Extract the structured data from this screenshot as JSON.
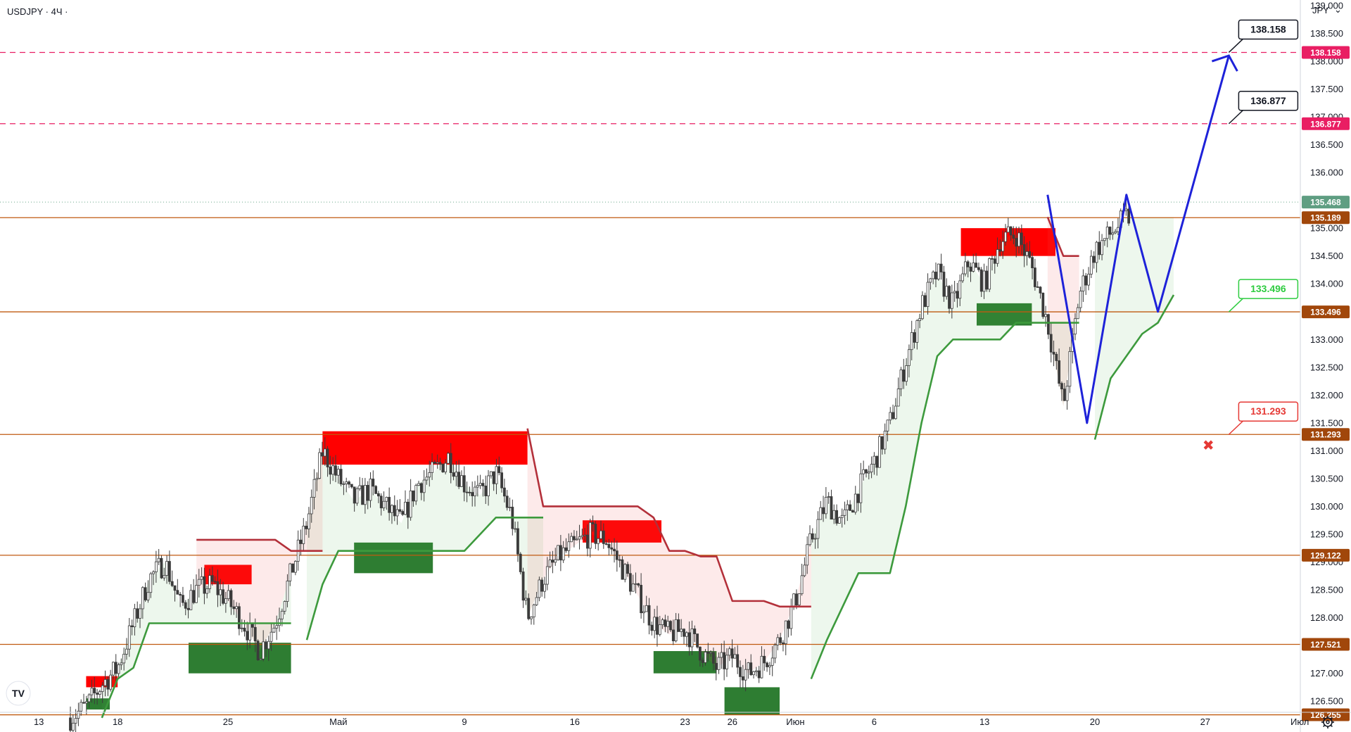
{
  "chart_data": {
    "type": "candlestick",
    "symbol_title": "USDJPY · 4Ч ·",
    "currency": "JPY",
    "currency_caret": "⌄",
    "ylim": [
      126.3,
      139.1
    ],
    "y_ticks": [
      "126.500",
      "127.000",
      "127.500",
      "128.000",
      "128.500",
      "129.000",
      "129.500",
      "130.000",
      "130.500",
      "131.000",
      "131.500",
      "132.000",
      "132.500",
      "133.000",
      "133.500",
      "134.000",
      "134.500",
      "135.000",
      "135.500",
      "136.000",
      "136.500",
      "137.000",
      "137.500",
      "138.000",
      "138.500",
      "139.000"
    ],
    "x_ticks": [
      {
        "label": "13",
        "t": -2
      },
      {
        "label": "18",
        "t": 3
      },
      {
        "label": "25",
        "t": 10
      },
      {
        "label": "Май",
        "t": 17
      },
      {
        "label": "9",
        "t": 25
      },
      {
        "label": "16",
        "t": 32
      },
      {
        "label": "23",
        "t": 39
      },
      {
        "label": "26",
        "t": 42
      },
      {
        "label": "Июн",
        "t": 46
      },
      {
        "label": "6",
        "t": 51
      },
      {
        "label": "13",
        "t": 58
      },
      {
        "label": "20",
        "t": 65
      },
      {
        "label": "27",
        "t": 72
      },
      {
        "label": "Июл",
        "t": 78
      }
    ],
    "candle_path": [
      [
        0,
        126.2
      ],
      [
        1,
        126.4
      ],
      [
        2,
        126.8
      ],
      [
        3,
        127.1
      ],
      [
        4,
        127.9
      ],
      [
        5,
        128.7
      ],
      [
        6,
        129.0
      ],
      [
        7,
        128.2
      ],
      [
        8,
        128.5
      ],
      [
        9,
        128.6
      ],
      [
        10,
        128.3
      ],
      [
        11,
        127.9
      ],
      [
        12,
        127.4
      ],
      [
        13,
        127.9
      ],
      [
        14,
        128.8
      ],
      [
        15,
        129.7
      ],
      [
        16,
        131.0
      ],
      [
        17,
        130.5
      ],
      [
        18,
        130.1
      ],
      [
        19,
        130.3
      ],
      [
        20,
        130.0
      ],
      [
        21,
        129.7
      ],
      [
        22,
        130.4
      ],
      [
        23,
        130.6
      ],
      [
        24,
        130.9
      ],
      [
        25,
        130.4
      ],
      [
        26,
        130.2
      ],
      [
        27,
        130.6
      ],
      [
        28,
        129.8
      ],
      [
        29,
        128.0
      ],
      [
        30,
        128.7
      ],
      [
        31,
        129.1
      ],
      [
        32,
        129.3
      ],
      [
        33,
        129.5
      ],
      [
        34,
        129.4
      ],
      [
        35,
        128.9
      ],
      [
        36,
        128.4
      ],
      [
        37,
        127.9
      ],
      [
        38,
        127.7
      ],
      [
        39,
        127.8
      ],
      [
        40,
        127.4
      ],
      [
        41,
        127.1
      ],
      [
        42,
        127.3
      ],
      [
        43,
        127.0
      ],
      [
        44,
        127.2
      ],
      [
        45,
        127.6
      ],
      [
        46,
        128.3
      ],
      [
        47,
        129.4
      ],
      [
        48,
        130.1
      ],
      [
        49,
        129.7
      ],
      [
        50,
        130.3
      ],
      [
        51,
        130.8
      ],
      [
        52,
        131.5
      ],
      [
        53,
        132.6
      ],
      [
        54,
        133.6
      ],
      [
        55,
        134.2
      ],
      [
        56,
        133.6
      ],
      [
        57,
        134.4
      ],
      [
        58,
        134.0
      ],
      [
        59,
        134.8
      ],
      [
        60,
        134.9
      ],
      [
        61,
        134.3
      ],
      [
        62,
        133.3
      ],
      [
        63,
        131.8
      ],
      [
        64,
        133.8
      ],
      [
        65,
        134.6
      ],
      [
        66,
        134.9
      ],
      [
        67,
        135.2
      ]
    ],
    "horizontal_levels": [
      {
        "price": 135.189,
        "label": "135.189",
        "color": "#c05a10",
        "style": "solid",
        "badge_bg": "#a1470b"
      },
      {
        "price": 133.496,
        "label": "133.496",
        "color": "#c05a10",
        "style": "solid",
        "badge_bg": "#a1470b"
      },
      {
        "price": 131.293,
        "label": "131.293",
        "color": "#c05a10",
        "style": "solid",
        "badge_bg": "#a1470b"
      },
      {
        "price": 129.122,
        "label": "129.122",
        "color": "#c05a10",
        "style": "solid",
        "badge_bg": "#a1470b"
      },
      {
        "price": 127.521,
        "label": "127.521",
        "color": "#c05a10",
        "style": "solid",
        "badge_bg": "#a1470b"
      },
      {
        "price": 126.255,
        "label": "126.255",
        "color": "#c05a10",
        "style": "solid",
        "badge_bg": "#a1470b"
      },
      {
        "price": 138.158,
        "label": "138.158",
        "color": "#e91e63",
        "style": "dashed",
        "badge_bg": "#e91e63"
      },
      {
        "price": 136.877,
        "label": "136.877",
        "color": "#e91e63",
        "style": "dashed",
        "badge_bg": "#e91e63"
      },
      {
        "price": 135.468,
        "label": "135.468",
        "color": "#6aa88b",
        "style": "dotted",
        "badge_bg": "#5f9e82"
      }
    ],
    "red_zones": [
      {
        "t0": 1,
        "t1": 3,
        "p0": 126.75,
        "p1": 126.95
      },
      {
        "t0": 8.5,
        "t1": 11.5,
        "p0": 128.6,
        "p1": 128.95
      },
      {
        "t0": 16,
        "t1": 29,
        "p0": 130.75,
        "p1": 131.35
      },
      {
        "t0": 32.5,
        "t1": 37.5,
        "p0": 129.35,
        "p1": 129.75
      },
      {
        "t0": 56.5,
        "t1": 62.5,
        "p0": 134.5,
        "p1": 135.0
      }
    ],
    "green_zones": [
      {
        "t0": 1,
        "t1": 2.5,
        "p0": 126.35,
        "p1": 126.55
      },
      {
        "t0": 7.5,
        "t1": 14,
        "p0": 127.0,
        "p1": 127.55
      },
      {
        "t0": 18,
        "t1": 23,
        "p0": 128.8,
        "p1": 129.35
      },
      {
        "t0": 37,
        "t1": 41,
        "p0": 127.0,
        "p1": 127.4
      },
      {
        "t0": 41.5,
        "t1": 45,
        "p0": 126.25,
        "p1": 126.75
      },
      {
        "t0": 57.5,
        "t1": 61,
        "p0": 133.25,
        "p1": 133.65
      }
    ],
    "supertrend_up": [
      [
        [
          2,
          126.2
        ],
        [
          3,
          126.9
        ],
        [
          4,
          127.1
        ],
        [
          5,
          127.9
        ],
        [
          6,
          127.9
        ],
        [
          7,
          127.9
        ],
        [
          8,
          127.9
        ],
        [
          9,
          127.9
        ],
        [
          10,
          127.9
        ],
        [
          11,
          127.9
        ],
        [
          12,
          127.9
        ],
        [
          13,
          127.9
        ],
        [
          14,
          127.9
        ]
      ],
      [
        [
          15,
          127.6
        ],
        [
          16,
          128.6
        ],
        [
          17,
          129.2
        ],
        [
          18,
          129.2
        ],
        [
          19,
          129.2
        ],
        [
          20,
          129.2
        ],
        [
          21,
          129.2
        ],
        [
          22,
          129.2
        ],
        [
          23,
          129.2
        ],
        [
          24,
          129.2
        ],
        [
          25,
          129.2
        ],
        [
          26,
          129.5
        ],
        [
          27,
          129.8
        ],
        [
          28,
          129.8
        ],
        [
          29,
          129.8
        ],
        [
          30,
          129.8
        ]
      ],
      [
        [
          47,
          126.9
        ],
        [
          48,
          127.6
        ],
        [
          49,
          128.2
        ],
        [
          50,
          128.8
        ],
        [
          51,
          128.8
        ],
        [
          52,
          128.8
        ],
        [
          53,
          130.0
        ],
        [
          54,
          131.5
        ],
        [
          55,
          132.7
        ],
        [
          56,
          133.0
        ],
        [
          57,
          133.0
        ],
        [
          58,
          133.0
        ],
        [
          59,
          133.0
        ],
        [
          60,
          133.3
        ],
        [
          61,
          133.3
        ],
        [
          62,
          133.3
        ],
        [
          63,
          133.3
        ],
        [
          64,
          133.3
        ]
      ],
      [
        [
          65,
          131.2
        ],
        [
          66,
          132.3
        ],
        [
          67,
          132.7
        ],
        [
          68,
          133.1
        ],
        [
          69,
          133.3
        ],
        [
          70,
          133.8
        ]
      ]
    ],
    "supertrend_down": [
      [
        [
          8,
          129.4
        ],
        [
          9,
          129.4
        ],
        [
          10,
          129.4
        ],
        [
          11,
          129.4
        ],
        [
          12,
          129.4
        ],
        [
          13,
          129.4
        ],
        [
          14,
          129.2
        ],
        [
          15,
          129.2
        ],
        [
          16,
          129.2
        ]
      ],
      [
        [
          29,
          131.4
        ],
        [
          30,
          130.0
        ],
        [
          31,
          130.0
        ],
        [
          32,
          130.0
        ],
        [
          33,
          130.0
        ],
        [
          34,
          130.0
        ],
        [
          35,
          130.0
        ],
        [
          36,
          130.0
        ],
        [
          37,
          129.8
        ],
        [
          38,
          129.2
        ],
        [
          39,
          129.2
        ],
        [
          40,
          129.1
        ],
        [
          41,
          129.1
        ],
        [
          42,
          128.3
        ],
        [
          43,
          128.3
        ],
        [
          44,
          128.3
        ],
        [
          45,
          128.2
        ],
        [
          46,
          128.2
        ],
        [
          47,
          128.2
        ]
      ],
      [
        [
          62,
          135.2
        ],
        [
          63,
          134.5
        ],
        [
          64,
          134.5
        ]
      ]
    ],
    "forecast_path": [
      [
        62,
        135.6
      ],
      [
        64.5,
        131.5
      ],
      [
        67,
        135.6
      ],
      [
        69,
        133.5
      ],
      [
        73.5,
        138.1
      ]
    ],
    "callouts": [
      {
        "text": "138.158",
        "price": 138.158,
        "t": 73.5,
        "color": "#131722"
      },
      {
        "text": "136.877",
        "price": 136.877,
        "t": 73.5,
        "color": "#131722"
      },
      {
        "text": "133.496",
        "price": 133.496,
        "t": 73.5,
        "color": "#2ecc40"
      },
      {
        "text": "131.293",
        "price": 131.293,
        "t": 73.5,
        "color": "#e53935"
      }
    ],
    "stop_mark": {
      "t": 72.2,
      "price": 131.1,
      "symbol": "✖",
      "color": "#e53935"
    },
    "logo_text": "TV",
    "settings_icon": "gear-icon"
  }
}
